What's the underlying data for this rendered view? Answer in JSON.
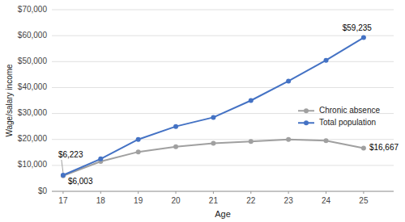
{
  "chart_data": {
    "type": "line",
    "x": [
      17,
      18,
      19,
      20,
      21,
      22,
      23,
      24,
      25
    ],
    "series": [
      {
        "name": "Chronic absence",
        "color": "#a0a0a0",
        "marker": "circle",
        "values": [
          6003,
          11500,
          15200,
          17200,
          18500,
          19200,
          20000,
          19500,
          16667
        ]
      },
      {
        "name": "Total population",
        "color": "#4472c4",
        "marker": "circle",
        "values": [
          6223,
          12500,
          20000,
          25000,
          28500,
          35000,
          42500,
          50500,
          59235
        ]
      }
    ],
    "xlabel": "Age",
    "ylabel": "Wage/salary income",
    "xlim": [
      16.7,
      25.8
    ],
    "xticks": [
      17,
      18,
      19,
      20,
      21,
      22,
      23,
      24,
      25
    ],
    "ylim": [
      0,
      70000
    ],
    "yticks": [
      {
        "value": 0,
        "label": "$0"
      },
      {
        "value": 10000,
        "label": "$10,000"
      },
      {
        "value": 20000,
        "label": "$20,000"
      },
      {
        "value": 30000,
        "label": "$30,000"
      },
      {
        "value": 40000,
        "label": "$40,000"
      },
      {
        "value": 50000,
        "label": "$50,000"
      },
      {
        "value": 60000,
        "label": "$60,000"
      },
      {
        "value": 70000,
        "label": "$70,000"
      }
    ],
    "annotations": [
      {
        "text": "$6,003",
        "x": 17,
        "y": 6003
      },
      {
        "text": "$6,223",
        "x": 17,
        "y": 6223
      },
      {
        "text": "$16,667",
        "x": 25,
        "y": 16667
      },
      {
        "text": "$59,235",
        "x": 25,
        "y": 59235
      }
    ],
    "grid": true,
    "legend": "right"
  }
}
